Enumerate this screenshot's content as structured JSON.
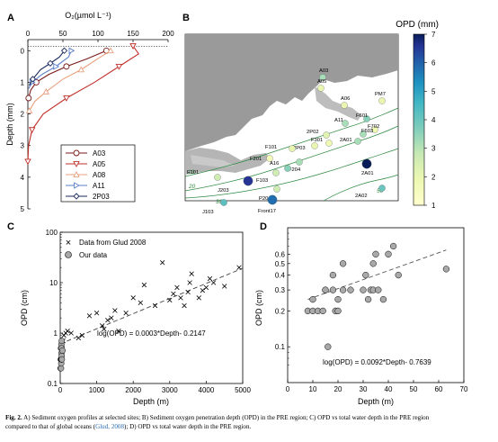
{
  "panels": {
    "A": {
      "letter": "A",
      "top_axis_label": "O₂(µmol L⁻¹)",
      "ylabel": "Depth (mm)",
      "xticks": [
        "0",
        "50",
        "100",
        "150",
        "200"
      ],
      "yticks": [
        "0",
        "1",
        "2",
        "3",
        "4",
        "5"
      ],
      "legend": [
        "A03",
        "A05",
        "A08",
        "A11",
        "2P03"
      ]
    },
    "B": {
      "letter": "B",
      "colorbar_title": "OPD (mm)",
      "colorbar_ticks": [
        "7",
        "6",
        "5",
        "4",
        "3",
        "2",
        "1"
      ],
      "contour_labels": [
        "10",
        "20",
        "30",
        "50"
      ],
      "stations": [
        "A03",
        "A05",
        "A06",
        "PM7",
        "F601",
        "A11",
        "F702",
        "2P02",
        "F603",
        "2A01",
        "F301",
        "2P03",
        "F101",
        "F201",
        "F204",
        "A16",
        "2A01b",
        "F103",
        "F101",
        "J203",
        "P204",
        "Front17",
        "J103",
        "2A02"
      ]
    },
    "C": {
      "letter": "C",
      "xlabel": "Depth (m)",
      "ylabel": "OPD (cm)",
      "legend": [
        "Data from Glud 2008",
        "Our data"
      ],
      "equation": "log(OPD) = 0.0003*Depth- 0.2147",
      "xticks": [
        "0",
        "1000",
        "2000",
        "3000",
        "4000",
        "5000"
      ],
      "yticks": [
        "0.1",
        "1",
        "10",
        "100"
      ]
    },
    "D": {
      "letter": "D",
      "xlabel": "Depth (m)",
      "ylabel": "OPD (cm)",
      "equation": "log(OPD) = 0.0092*Depth- 0.7639",
      "xticks": [
        "0",
        "10",
        "20",
        "30",
        "40",
        "50",
        "60",
        "70"
      ],
      "yticks": [
        "0.1",
        "0.2",
        "0.3",
        "0.4",
        "0.5",
        "0.6"
      ]
    }
  },
  "chart_data": [
    {
      "type": "line",
      "panel": "A",
      "xlabel": "O₂(µmol L⁻¹)",
      "ylabel": "Depth (mm)",
      "xlim": [
        0,
        200
      ],
      "ylim": [
        5,
        -0.35
      ],
      "series": [
        {
          "name": "A03",
          "color": "#7a1a1a",
          "marker": "circle",
          "x": [
            112,
            85,
            55,
            30,
            12,
            4,
            1
          ],
          "y": [
            0,
            0.25,
            0.5,
            0.75,
            1.0,
            1.25,
            1.5
          ]
        },
        {
          "name": "A05",
          "color": "#c0302a",
          "marker": "triangle-down",
          "x": [
            150,
            158,
            130,
            95,
            55,
            22,
            6,
            1,
            0
          ],
          "y": [
            -0.15,
            0.1,
            0.5,
            1.0,
            1.5,
            2.0,
            2.5,
            3.0,
            3.5
          ]
        },
        {
          "name": "A08",
          "color": "#e8a07e",
          "marker": "triangle-up",
          "x": [
            118,
            100,
            76,
            50,
            26,
            10,
            2
          ],
          "y": [
            0,
            0.25,
            0.6,
            0.9,
            1.3,
            1.6,
            1.9
          ]
        },
        {
          "name": "A11",
          "color": "#5b7fc8",
          "marker": "triangle-right",
          "x": [
            62,
            58,
            40,
            20,
            6,
            1
          ],
          "y": [
            0,
            0.2,
            0.5,
            0.75,
            1.0,
            1.2
          ]
        },
        {
          "name": "2P03",
          "color": "#1b2a5c",
          "marker": "diamond",
          "x": [
            52,
            45,
            32,
            18,
            7,
            2
          ],
          "y": [
            0,
            0.2,
            0.4,
            0.6,
            0.9,
            1.1
          ]
        }
      ]
    },
    {
      "type": "scatter",
      "panel": "C",
      "xlabel": "Depth (m)",
      "ylabel": "OPD (cm)",
      "xlim": [
        0,
        5000
      ],
      "ylim": [
        0.1,
        100
      ],
      "log_y": true,
      "series": [
        {
          "name": "Data from Glud 2008",
          "marker": "x",
          "x": [
            30,
            60,
            80,
            100,
            150,
            200,
            300,
            500,
            600,
            800,
            1000,
            1150,
            1200,
            1300,
            1400,
            1500,
            1600,
            1800,
            2000,
            2200,
            2300,
            2600,
            2800,
            3000,
            3100,
            3200,
            3300,
            3400,
            3500,
            3550,
            3600,
            3800,
            3900,
            4000,
            4100,
            4200,
            4500,
            4900
          ],
          "y": [
            0.3,
            0.5,
            0.7,
            0.9,
            1.0,
            1.1,
            1.0,
            0.8,
            0.9,
            2.2,
            2.5,
            1.4,
            1.2,
            1.8,
            2.0,
            2.8,
            1.1,
            2.5,
            5.0,
            4.0,
            9.0,
            3.5,
            25,
            4.5,
            6.0,
            8.0,
            5.0,
            3.5,
            6.5,
            10,
            15,
            5.0,
            7.0,
            8.0,
            12,
            10,
            8.5,
            20
          ]
        },
        {
          "name": "Our data",
          "marker": "circle",
          "x": [
            10,
            15,
            20,
            22,
            25,
            28,
            30,
            32,
            34,
            36,
            38,
            40,
            42,
            45,
            63
          ],
          "y": [
            0.2,
            0.3,
            0.5,
            0.2,
            0.3,
            0.25,
            0.3,
            0.6,
            0.4,
            0.5,
            0.3,
            0.35,
            0.7,
            0.3,
            0.45
          ]
        },
        {
          "name": "fit",
          "type": "line",
          "x": [
            0,
            5000
          ],
          "y": [
            0.61,
            19.3
          ]
        }
      ]
    },
    {
      "type": "scatter",
      "panel": "D",
      "xlabel": "Depth (m)",
      "ylabel": "OPD (cm)",
      "xlim": [
        0,
        70
      ],
      "ylim": [
        0.05,
        1.0
      ],
      "log_y": true,
      "series": [
        {
          "name": "Our data",
          "marker": "circle",
          "x": [
            8,
            10,
            10,
            12,
            14,
            15,
            15,
            16,
            18,
            18,
            19,
            20,
            20,
            22,
            22,
            25,
            30,
            31,
            32,
            33,
            34,
            34,
            35,
            36,
            38,
            40,
            42,
            44,
            63
          ],
          "y": [
            0.2,
            0.2,
            0.25,
            0.2,
            0.2,
            0.3,
            0.3,
            0.1,
            0.3,
            0.4,
            0.2,
            0.2,
            0.25,
            0.3,
            0.5,
            0.3,
            0.3,
            0.4,
            0.25,
            0.3,
            0.3,
            0.5,
            0.6,
            0.3,
            0.25,
            0.6,
            0.7,
            0.4,
            0.45
          ]
        },
        {
          "name": "fit",
          "type": "line",
          "x": [
            8,
            63
          ],
          "y": [
            0.25,
            0.65
          ]
        }
      ]
    }
  ],
  "map_stations": [
    {
      "label": "A03",
      "opd": 3.2
    },
    {
      "label": "A05",
      "opd": 2.0
    },
    {
      "label": "A06",
      "opd": 2.0
    },
    {
      "label": "PM7",
      "opd": 2.0
    },
    {
      "label": "F601",
      "opd": 3.6
    },
    {
      "label": "A11",
      "opd": 3.2
    },
    {
      "label": "F702",
      "opd": 1.8
    },
    {
      "label": "2P02",
      "opd": 2.2
    },
    {
      "label": "F603",
      "opd": 3.2
    },
    {
      "label": "2A01",
      "opd": 3.2
    },
    {
      "label": "F301",
      "opd": 1.8
    },
    {
      "label": "2P03",
      "opd": 2.0
    },
    {
      "label": "F101",
      "opd": 2.0
    },
    {
      "label": "F201",
      "opd": 1.6
    },
    {
      "label": "F204",
      "opd": 3.2
    },
    {
      "label": "A16",
      "opd": 3.6
    },
    {
      "label": "2A01b",
      "opd": 7.0
    },
    {
      "label": "F103",
      "opd": 2.6
    },
    {
      "label": "F101",
      "opd": 2.6
    },
    {
      "label": "J203",
      "opd": 6.6
    },
    {
      "label": "P204",
      "opd": 2.6
    },
    {
      "label": "Front17",
      "opd": 5.8
    },
    {
      "label": "J103",
      "opd": 4.2
    },
    {
      "label": "2A02",
      "opd": 4.0
    }
  ],
  "caption": {
    "label": "Fig. 2.",
    "text1": " A) Sediment oxygen profiles at selected sites; B) Sediment oxygen penetration depth (OPD) in the PRE region; C) OPD vs total water depth in the PRE region",
    "text2": "compared to that of global oceans (",
    "ref": "Glud, 2008",
    "text3": "); D) OPD vs total water depth in the PRE region."
  },
  "colors": {
    "accent": "#2a6db0",
    "marker_gray": "#a9a9a9"
  }
}
